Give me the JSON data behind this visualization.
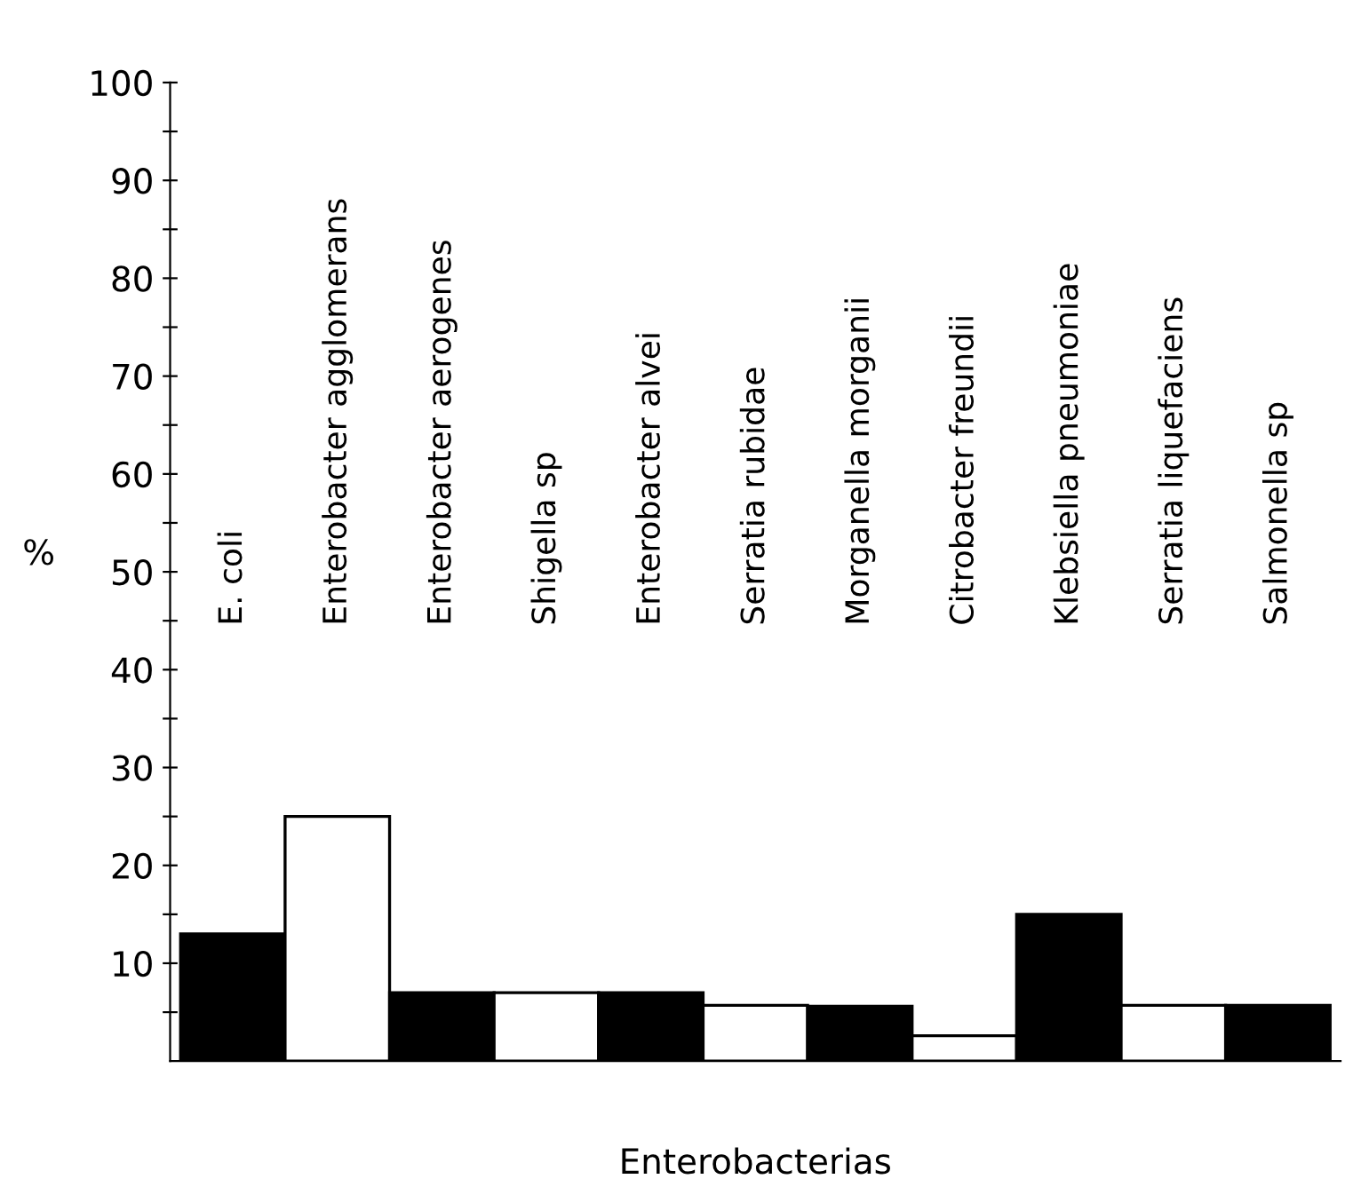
{
  "chart_data": {
    "type": "bar",
    "xlabel": "Enterobacterias",
    "ylabel": "%",
    "categories": [
      "E. coli",
      "Enterobacter agglomerans",
      "Enterobacter aerogenes",
      "Shigella sp",
      "Enterobacter alvei",
      "Serratia rubidae",
      "Morganella morganii",
      "Citrobacter freundii",
      "Klebsiella pneumoniae",
      "Serratia liquefaciens",
      "Salmonella sp"
    ],
    "values": [
      13,
      25,
      7,
      7,
      7,
      5.7,
      5.6,
      2.6,
      15,
      5.7,
      5.7
    ],
    "colors": [
      "#000000",
      "#ffffff",
      "#000000",
      "#ffffff",
      "#000000",
      "#ffffff",
      "#000000",
      "#ffffff",
      "#000000",
      "#ffffff",
      "#000000"
    ],
    "ylim": [
      0,
      100
    ],
    "yticks": [
      {
        "value": 5,
        "label": null
      },
      10,
      {
        "value": 15,
        "label": null
      },
      20,
      {
        "value": 25,
        "label": null
      },
      30,
      {
        "value": 35,
        "label": null
      },
      40,
      {
        "value": 45,
        "label": null
      },
      50,
      {
        "value": 55,
        "label": null
      },
      60,
      {
        "value": 65,
        "label": null
      },
      70,
      {
        "value": 75,
        "label": null
      },
      80,
      {
        "value": 85,
        "label": null
      },
      90,
      {
        "value": 95,
        "label": null
      },
      100
    ],
    "grid": false,
    "legend": false
  }
}
